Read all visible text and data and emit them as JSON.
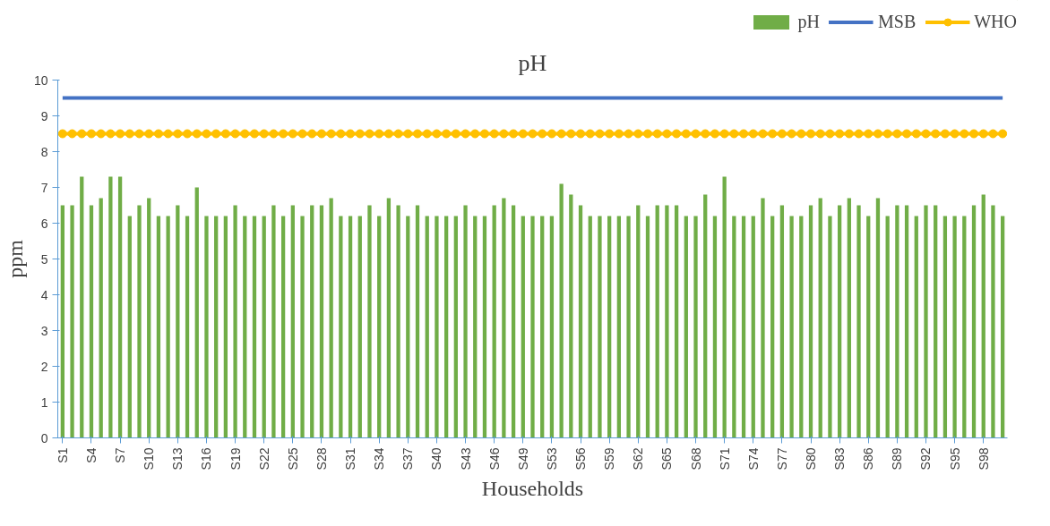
{
  "chart_data": {
    "type": "bar",
    "title": "pH",
    "xlabel": "Households",
    "ylabel": "ppm",
    "categories": [
      "S1",
      null,
      null,
      "S4",
      null,
      null,
      "S7",
      null,
      null,
      "S10",
      null,
      null,
      "S13",
      null,
      null,
      "S16",
      null,
      null,
      "S19",
      null,
      null,
      "S22",
      null,
      null,
      "S25",
      null,
      null,
      "S28",
      null,
      null,
      "S31",
      null,
      null,
      "S34",
      null,
      null,
      "S37",
      null,
      null,
      "S40",
      null,
      null,
      "S43",
      null,
      null,
      "S46",
      null,
      null,
      "S49",
      null,
      null,
      "S53",
      null,
      null,
      "S56",
      null,
      null,
      "S59",
      null,
      null,
      "S62",
      null,
      null,
      "S65",
      null,
      null,
      "S68",
      null,
      null,
      "S71",
      null,
      null,
      "S74",
      null,
      null,
      "S77",
      null,
      null,
      "S80",
      null,
      null,
      "S83",
      null,
      null,
      "S86",
      null,
      null,
      "S89",
      null,
      null,
      "S92",
      null,
      null,
      "S95",
      null,
      null,
      "S98",
      null,
      null
    ],
    "series": [
      {
        "name": "pH",
        "color": "#70ad47",
        "values": [
          6.5,
          6.5,
          7.3,
          6.5,
          6.7,
          7.3,
          7.3,
          6.2,
          6.5,
          6.7,
          6.2,
          6.2,
          6.5,
          6.2,
          7.0,
          6.2,
          6.2,
          6.2,
          6.5,
          6.2,
          6.2,
          6.2,
          6.5,
          6.2,
          6.5,
          6.2,
          6.5,
          6.5,
          6.7,
          6.2,
          6.2,
          6.2,
          6.5,
          6.2,
          6.7,
          6.5,
          6.2,
          6.5,
          6.2,
          6.2,
          6.2,
          6.2,
          6.5,
          6.2,
          6.2,
          6.5,
          6.7,
          6.5,
          6.2,
          6.2,
          6.2,
          6.2,
          7.1,
          6.8,
          6.5,
          6.2,
          6.2,
          6.2,
          6.2,
          6.2,
          6.5,
          6.2,
          6.5,
          6.5,
          6.5,
          6.2,
          6.2,
          6.8,
          6.2,
          7.3,
          6.2,
          6.2,
          6.2,
          6.7,
          6.2,
          6.5,
          6.2,
          6.2,
          6.5,
          6.7,
          6.2,
          6.5,
          6.7,
          6.5,
          6.2,
          6.7,
          6.2,
          6.5,
          6.5,
          6.2,
          6.5,
          6.5,
          6.2,
          6.2,
          6.2,
          6.5,
          6.8,
          6.5,
          6.2
        ]
      },
      {
        "name": "MSB",
        "type": "line",
        "marker": "none",
        "color": "#4472c4",
        "values": [
          9.5,
          9.5,
          9.5,
          9.5,
          9.5,
          9.5,
          9.5,
          9.5,
          9.5,
          9.5,
          9.5,
          9.5,
          9.5,
          9.5,
          9.5,
          9.5,
          9.5,
          9.5,
          9.5,
          9.5,
          9.5,
          9.5,
          9.5,
          9.5,
          9.5,
          9.5,
          9.5,
          9.5,
          9.5,
          9.5,
          9.5,
          9.5,
          9.5,
          9.5,
          9.5,
          9.5,
          9.5,
          9.5,
          9.5,
          9.5,
          9.5,
          9.5,
          9.5,
          9.5,
          9.5,
          9.5,
          9.5,
          9.5,
          9.5,
          9.5,
          9.5,
          9.5,
          9.5,
          9.5,
          9.5,
          9.5,
          9.5,
          9.5,
          9.5,
          9.5,
          9.5,
          9.5,
          9.5,
          9.5,
          9.5,
          9.5,
          9.5,
          9.5,
          9.5,
          9.5,
          9.5,
          9.5,
          9.5,
          9.5,
          9.5,
          9.5,
          9.5,
          9.5,
          9.5,
          9.5,
          9.5,
          9.5,
          9.5,
          9.5,
          9.5,
          9.5,
          9.5,
          9.5,
          9.5,
          9.5,
          9.5,
          9.5,
          9.5,
          9.5,
          9.5,
          9.5,
          9.5,
          9.5,
          9.5
        ]
      },
      {
        "name": "WHO",
        "type": "line",
        "marker": "circle",
        "color": "#ffc000",
        "values": [
          8.5,
          8.5,
          8.5,
          8.5,
          8.5,
          8.5,
          8.5,
          8.5,
          8.5,
          8.5,
          8.5,
          8.5,
          8.5,
          8.5,
          8.5,
          8.5,
          8.5,
          8.5,
          8.5,
          8.5,
          8.5,
          8.5,
          8.5,
          8.5,
          8.5,
          8.5,
          8.5,
          8.5,
          8.5,
          8.5,
          8.5,
          8.5,
          8.5,
          8.5,
          8.5,
          8.5,
          8.5,
          8.5,
          8.5,
          8.5,
          8.5,
          8.5,
          8.5,
          8.5,
          8.5,
          8.5,
          8.5,
          8.5,
          8.5,
          8.5,
          8.5,
          8.5,
          8.5,
          8.5,
          8.5,
          8.5,
          8.5,
          8.5,
          8.5,
          8.5,
          8.5,
          8.5,
          8.5,
          8.5,
          8.5,
          8.5,
          8.5,
          8.5,
          8.5,
          8.5,
          8.5,
          8.5,
          8.5,
          8.5,
          8.5,
          8.5,
          8.5,
          8.5,
          8.5,
          8.5,
          8.5,
          8.5,
          8.5,
          8.5,
          8.5,
          8.5,
          8.5,
          8.5,
          8.5,
          8.5,
          8.5,
          8.5,
          8.5,
          8.5,
          8.5,
          8.5,
          8.5,
          8.5,
          8.5
        ]
      }
    ],
    "ylim": [
      0,
      10
    ],
    "yticks": [
      0,
      1,
      2,
      3,
      4,
      5,
      6,
      7,
      8,
      9,
      10
    ],
    "legend": "top right"
  }
}
